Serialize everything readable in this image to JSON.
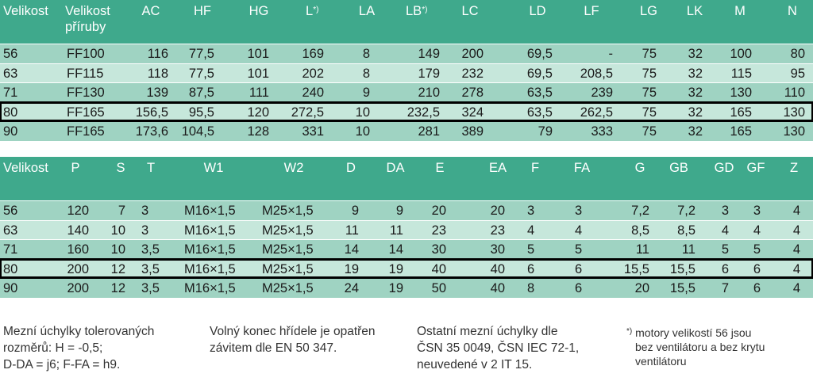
{
  "table1": {
    "headers": [
      "Velikost",
      "Velikost příruby",
      "AC",
      "HF",
      "HG",
      "L",
      "LA",
      "LB",
      "LC",
      "LD",
      "LF",
      "LG",
      "LK",
      "M",
      "N"
    ],
    "header_sup": "*)",
    "rows": [
      [
        "56",
        "FF100",
        "116",
        "77,5",
        "101",
        "169",
        "8",
        "149",
        "200",
        "69,5",
        "-",
        "75",
        "32",
        "100",
        "80"
      ],
      [
        "63",
        "FF115",
        "118",
        "77,5",
        "101",
        "202",
        "8",
        "179",
        "232",
        "69,5",
        "208,5",
        "75",
        "32",
        "115",
        "95"
      ],
      [
        "71",
        "FF130",
        "139",
        "87,5",
        "111",
        "240",
        "9",
        "210",
        "278",
        "63,5",
        "239",
        "75",
        "32",
        "130",
        "110"
      ],
      [
        "80",
        "FF165",
        "156,5",
        "95,5",
        "120",
        "272,5",
        "10",
        "232,5",
        "324",
        "63,5",
        "262,5",
        "75",
        "32",
        "165",
        "130"
      ],
      [
        "90",
        "FF165",
        "173,6",
        "104,5",
        "128",
        "331",
        "10",
        "281",
        "389",
        "79",
        "333",
        "75",
        "32",
        "165",
        "130"
      ]
    ],
    "highlighted_row": 3
  },
  "table2": {
    "headers": [
      "Velikost",
      "P",
      "S",
      "T",
      "W1",
      "W2",
      "D",
      "DA",
      "E",
      "EA",
      "F",
      "FA",
      "G",
      "GB",
      "GD",
      "GF",
      "Z"
    ],
    "rows": [
      [
        "56",
        "120",
        "7",
        "3",
        "M16×1,5",
        "M25×1,5",
        "9",
        "9",
        "20",
        "20",
        "3",
        "3",
        "7,2",
        "7,2",
        "3",
        "3",
        "4"
      ],
      [
        "63",
        "140",
        "10",
        "3",
        "M16×1,5",
        "M25×1,5",
        "11",
        "11",
        "23",
        "23",
        "4",
        "4",
        "8,5",
        "8,5",
        "4",
        "4",
        "4"
      ],
      [
        "71",
        "160",
        "10",
        "3,5",
        "M16×1,5",
        "M25×1,5",
        "14",
        "14",
        "30",
        "30",
        "5",
        "5",
        "11",
        "11",
        "5",
        "5",
        "4"
      ],
      [
        "80",
        "200",
        "12",
        "3,5",
        "M16×1,5",
        "M25×1,5",
        "19",
        "19",
        "40",
        "40",
        "6",
        "6",
        "15,5",
        "15,5",
        "6",
        "6",
        "4"
      ],
      [
        "90",
        "200",
        "12",
        "3,5",
        "M16×1,5",
        "M25×1,5",
        "24",
        "19",
        "50",
        "40",
        "8",
        "6",
        "20",
        "15,5",
        "7",
        "6",
        "4"
      ]
    ],
    "highlighted_row": 3
  },
  "notes": {
    "tolerance": [
      "Mezní úchylky tolerovaných",
      "rozměrů: H = -0,5;",
      "D-DA = j6; F-FA = h9."
    ],
    "shaft": [
      "Volný konec hřídele je opatřen",
      "závitem dle EN 50 347."
    ],
    "other": [
      "Ostatní mezní úchylky dle",
      "ČSN 35 0049, ČSN IEC 72-1,",
      "neuvedené v 2 IT 15."
    ],
    "footnote_mark": "*)",
    "footnote": [
      "motory velikostí 56 jsou",
      "bez ventilátoru a bez krytu",
      "ventilátoru"
    ]
  },
  "colors": {
    "header": "#3fa98c",
    "row_dark": "#9fd3c2",
    "row_light": "#c6e7db",
    "highlight_border": "#000000"
  }
}
